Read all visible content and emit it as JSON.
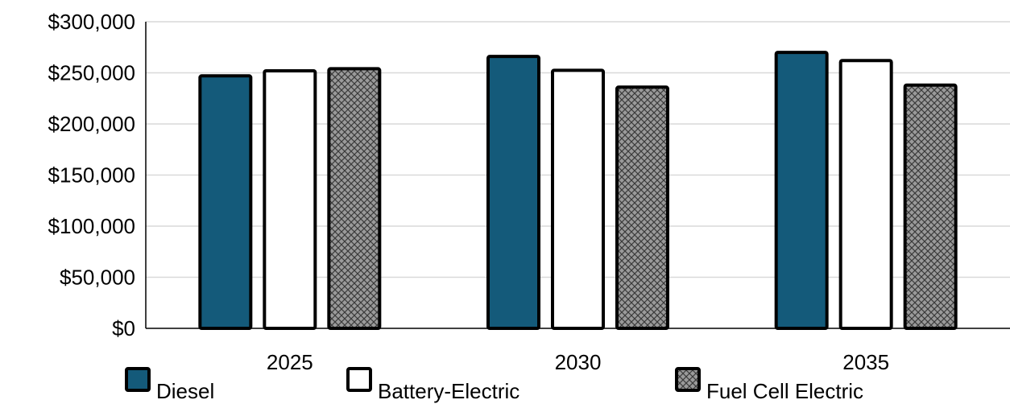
{
  "chart_data": {
    "type": "bar",
    "categories": [
      "2025",
      "2030",
      "2035"
    ],
    "series": [
      {
        "name": "Diesel",
        "values": [
          247000,
          266000,
          270000
        ],
        "fill": "#145a7a",
        "pattern": "solid"
      },
      {
        "name": "Battery-Electric",
        "values": [
          252000,
          252500,
          262000
        ],
        "fill": "#ffffff",
        "pattern": "solid"
      },
      {
        "name": "Fuel Cell Electric",
        "values": [
          254000,
          236000,
          238000
        ],
        "fill": "#9a9a9a",
        "pattern": "crosshatch"
      }
    ],
    "ylim": [
      0,
      300000
    ],
    "yticks": [
      0,
      50000,
      100000,
      150000,
      200000,
      250000,
      300000
    ],
    "ytick_labels": [
      "$0",
      "$50,000",
      "$100,000",
      "$150,000",
      "$200,000",
      "$250,000",
      "$300,000"
    ],
    "title": "",
    "xlabel": "",
    "ylabel": "",
    "grid": true,
    "legend_position": "bottom"
  }
}
